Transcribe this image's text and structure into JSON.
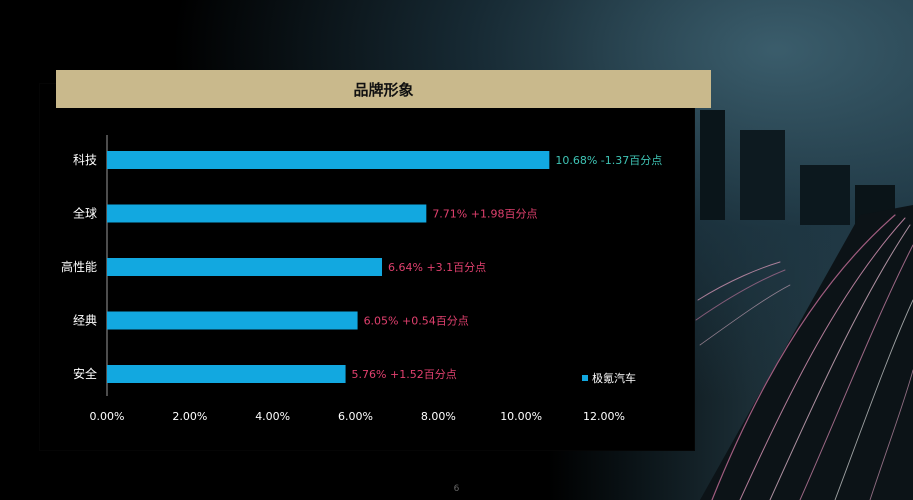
{
  "page": {
    "number": "6"
  },
  "chart_data": {
    "type": "bar",
    "orientation": "horizontal",
    "title": "品牌形象",
    "categories": [
      "科技",
      "全球",
      "高性能",
      "经典",
      "安全"
    ],
    "series": [
      {
        "name": "极氪汽车",
        "values": [
          10.68,
          7.71,
          6.64,
          6.05,
          5.76
        ],
        "color": "#12a8e0"
      }
    ],
    "data_labels": [
      {
        "text": "10.68%  -1.37百分点",
        "color": "#3fc4b5"
      },
      {
        "text": "7.71% +1.98百分点",
        "color": "#e0406e"
      },
      {
        "text": "6.64% +3.1百分点",
        "color": "#e0406e"
      },
      {
        "text": "6.05% +0.54百分点",
        "color": "#e0406e"
      },
      {
        "text": "5.76% +1.52百分点",
        "color": "#e0406e"
      }
    ],
    "xlim": [
      0,
      12
    ],
    "x_ticks": [
      "0.00%",
      "2.00%",
      "4.00%",
      "6.00%",
      "8.00%",
      "10.00%",
      "12.00%"
    ],
    "grid": false,
    "legend_position": "bottom-right",
    "colors": {
      "bar": "#12a8e0",
      "negative": "#3fc4b5",
      "positive": "#e0406e",
      "axis": "#9a9a9a",
      "text": "#ffffff",
      "title_bg": "#c9b98c"
    }
  }
}
